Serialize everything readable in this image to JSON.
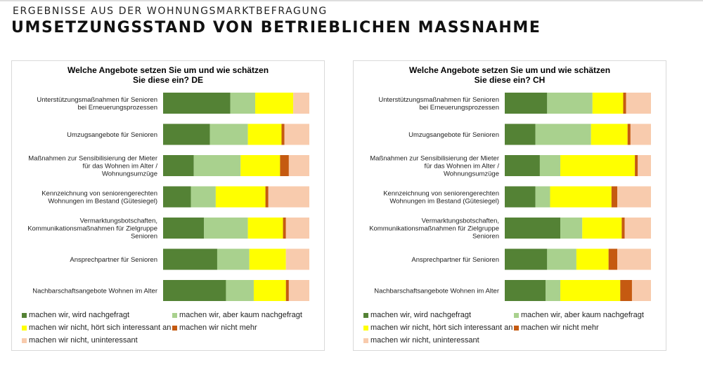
{
  "header": {
    "subtitle": "ERGEBNISSE AUS DER WOHNUNGSMARKTBEFRAGUNG",
    "title": "UMSETZUNGSSTAND VON BETRIEBLICHEN MASSNAHME"
  },
  "colors": {
    "s1": "#548235",
    "s2": "#a9d18e",
    "s3": "#ffff00",
    "s4": "#c55a11",
    "s5": "#f8cbad"
  },
  "legend_labels": [
    "machen wir, wird nachgefragt",
    "machen wir, aber kaum nachgefragt",
    "machen wir nicht, hört sich interessant an",
    "machen wir nicht mehr",
    "machen wir nicht, uninteressant"
  ],
  "chart_data": [
    {
      "type": "bar",
      "stacked": true,
      "orientation": "horizontal",
      "title_lines": [
        "Welche Angebote setzen Sie um und wie schätzen",
        "Sie diese ein? DE"
      ],
      "categories": [
        [
          "Unterstützungsmaßnahmen für Senioren",
          "bei Erneuerungsprozessen"
        ],
        [
          "Umzugsangebote für Senioren"
        ],
        [
          "Maßnahmen zur Sensibilisierung der Mieter",
          "für das Wohnen im Alter /",
          "Wohnungsumzüge"
        ],
        [
          "Kennzeichnung von seniorengerechten",
          "Wohnungen im Bestand (Gütesiegel)"
        ],
        [
          "Vermarktungsbotschaften,",
          "Kommunikationsmaßnahmen für Zielgruppe",
          "Senioren"
        ],
        [
          "Ansprechpartner für Senioren"
        ],
        [
          "Nachbarschaftsangebote Wohnen im Alter"
        ]
      ],
      "series": [
        {
          "name": "machen wir, wird nachgefragt",
          "values": [
            46,
            32,
            21,
            19,
            28,
            37,
            43
          ]
        },
        {
          "name": "machen wir, aber kaum nachgefragt",
          "values": [
            17,
            26,
            32,
            17,
            30,
            22,
            19
          ]
        },
        {
          "name": "machen wir nicht, hört sich interessant an",
          "values": [
            26,
            23,
            27,
            34,
            24,
            25,
            22
          ]
        },
        {
          "name": "machen wir nicht mehr",
          "values": [
            0,
            2,
            6,
            2,
            2,
            0,
            2
          ]
        },
        {
          "name": "machen wir nicht, uninteressant",
          "values": [
            11,
            17,
            14,
            28,
            16,
            16,
            14
          ]
        }
      ],
      "xlim": [
        0,
        100
      ]
    },
    {
      "type": "bar",
      "stacked": true,
      "orientation": "horizontal",
      "title_lines": [
        "Welche Angebote setzen Sie um und wie schätzen",
        "Sie diese ein? CH"
      ],
      "categories": [
        [
          "Unterstützungsmaßnahmen für Senioren",
          "bei Erneuerungsprozessen"
        ],
        [
          "Umzugsangebote für Senioren"
        ],
        [
          "Maßnahmen zur Sensibilisierung der Mieter",
          "für das Wohnen im Alter /",
          "Wohnungsumzüge"
        ],
        [
          "Kennzeichnung von seniorengerechten",
          "Wohnungen im Bestand (Gütesiegel)"
        ],
        [
          "Vermarktungsbotschaften,",
          "Kommunikationsmaßnahmen für Zielgruppe",
          "Senioren"
        ],
        [
          "Ansprechpartner für Senioren"
        ],
        [
          "Nachbarschaftsangebote Wohnen im Alter"
        ]
      ],
      "series": [
        {
          "name": "machen wir, wird nachgefragt",
          "values": [
            29,
            21,
            24,
            21,
            38,
            29,
            28
          ]
        },
        {
          "name": "machen wir, aber kaum nachgefragt",
          "values": [
            31,
            38,
            14,
            10,
            15,
            20,
            10
          ]
        },
        {
          "name": "machen wir nicht, hört sich interessant an",
          "values": [
            21,
            25,
            51,
            42,
            27,
            22,
            41
          ]
        },
        {
          "name": "machen wir nicht mehr",
          "values": [
            2,
            2,
            2,
            4,
            2,
            6,
            8
          ]
        },
        {
          "name": "machen wir nicht, uninteressant",
          "values": [
            17,
            14,
            9,
            23,
            18,
            23,
            13
          ]
        }
      ],
      "xlim": [
        0,
        100
      ]
    }
  ]
}
